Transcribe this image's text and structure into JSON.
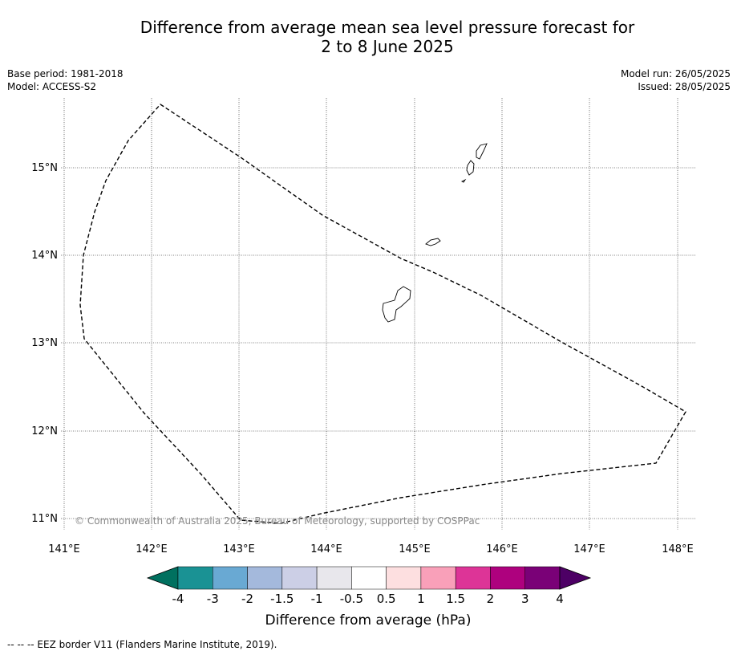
{
  "title": {
    "line1": "Difference from average mean sea level pressure forecast for",
    "line2": "2 to 8 June 2025"
  },
  "meta_left": {
    "base_period": "Base period: 1981-2018",
    "model": "Model: ACCESS-S2"
  },
  "meta_right": {
    "model_run": "Model run: 26/05/2025",
    "issued": "Issued: 28/05/2025"
  },
  "map": {
    "lon_labels": [
      "141°E",
      "142°E",
      "143°E",
      "144°E",
      "145°E",
      "146°E",
      "147°E",
      "148°E"
    ],
    "lat_labels": [
      "15°N",
      "14°N",
      "13°N",
      "12°N",
      "11°N"
    ],
    "copyright": "© Commonwealth of Australia 2025, Bureau of Meteorology, supported by COSPPac"
  },
  "colorbar": {
    "label": "Difference from average (hPa)",
    "ticks": [
      "-4",
      "-3",
      "-2",
      "-1.5",
      "-1",
      "-0.5",
      "0.5",
      "1",
      "1.5",
      "2",
      "3",
      "4"
    ],
    "under_color": "#00705f",
    "over_color": "#4d0065",
    "colors": [
      "#1a9294",
      "#69a9d3",
      "#a4b9dc",
      "#cccfe6",
      "#e8e7ec",
      "#ffffff",
      "#fddfe0",
      "#f9a0b9",
      "#dd3497",
      "#ae017e",
      "#7a0177"
    ]
  },
  "footnote": "-- -- -- EEZ border V11 (Flanders Marine Institute, 2019)."
}
